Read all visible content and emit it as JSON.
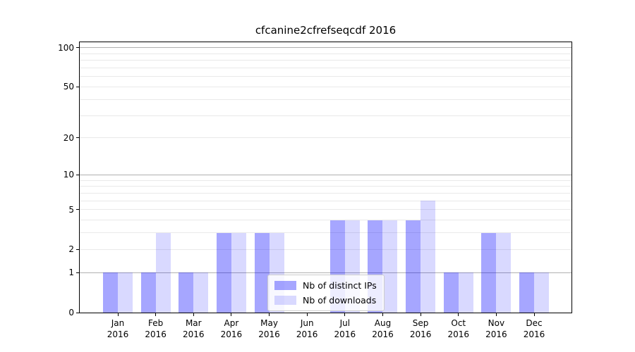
{
  "title": "cfcanine2cfrefseqcdf 2016",
  "legend": {
    "items": [
      {
        "label": "Nb of distinct IPs",
        "color": "rgba(0,0,255,0.35)"
      },
      {
        "label": "Nb of downloads",
        "color": "rgba(0,0,255,0.15)"
      }
    ]
  },
  "chart_data": {
    "type": "bar",
    "title": "cfcanine2cfrefseqcdf 2016",
    "categories": [
      {
        "month": "Jan",
        "year": "2016"
      },
      {
        "month": "Feb",
        "year": "2016"
      },
      {
        "month": "Mar",
        "year": "2016"
      },
      {
        "month": "Apr",
        "year": "2016"
      },
      {
        "month": "May",
        "year": "2016"
      },
      {
        "month": "Jun",
        "year": "2016"
      },
      {
        "month": "Jul",
        "year": "2016"
      },
      {
        "month": "Aug",
        "year": "2016"
      },
      {
        "month": "Sep",
        "year": "2016"
      },
      {
        "month": "Oct",
        "year": "2016"
      },
      {
        "month": "Nov",
        "year": "2016"
      },
      {
        "month": "Dec",
        "year": "2016"
      }
    ],
    "series": [
      {
        "name": "Nb of distinct IPs",
        "color": "rgba(0,0,255,0.35)",
        "values": [
          1,
          1,
          1,
          3,
          3,
          0,
          4,
          4,
          4,
          1,
          3,
          1
        ]
      },
      {
        "name": "Nb of downloads",
        "color": "rgba(0,0,255,0.15)",
        "values": [
          1,
          3,
          1,
          3,
          3,
          0,
          4,
          4,
          6,
          1,
          3,
          1
        ]
      }
    ],
    "xlabel": "",
    "ylabel": "",
    "yscale": "log1p",
    "ylim": [
      0,
      110
    ],
    "yticks": [
      0,
      1,
      2,
      5,
      10,
      20,
      50,
      100
    ],
    "grid": {
      "on": true,
      "major_values": [
        1,
        10,
        100
      ],
      "minor_values": [
        2,
        3,
        4,
        5,
        6,
        7,
        8,
        9,
        20,
        30,
        40,
        50,
        60,
        70,
        80,
        90
      ],
      "major_color": "#b0b0b0",
      "minor_color": "#e9e9e9"
    },
    "legend_position": "lower center"
  }
}
